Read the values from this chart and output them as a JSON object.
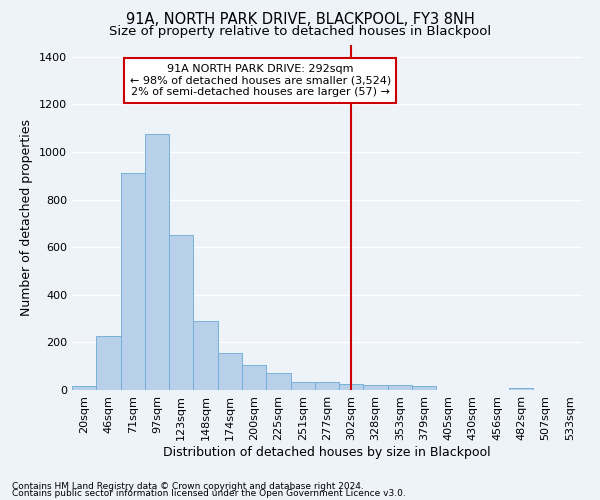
{
  "title": "91A, NORTH PARK DRIVE, BLACKPOOL, FY3 8NH",
  "subtitle": "Size of property relative to detached houses in Blackpool",
  "xlabel": "Distribution of detached houses by size in Blackpool",
  "ylabel": "Number of detached properties",
  "footnote1": "Contains HM Land Registry data © Crown copyright and database right 2024.",
  "footnote2": "Contains public sector information licensed under the Open Government Licence v3.0.",
  "bar_labels": [
    "20sqm",
    "46sqm",
    "71sqm",
    "97sqm",
    "123sqm",
    "148sqm",
    "174sqm",
    "200sqm",
    "225sqm",
    "251sqm",
    "277sqm",
    "302sqm",
    "328sqm",
    "353sqm",
    "379sqm",
    "405sqm",
    "430sqm",
    "456sqm",
    "482sqm",
    "507sqm",
    "533sqm"
  ],
  "bar_values": [
    15,
    225,
    910,
    1075,
    650,
    290,
    155,
    105,
    70,
    35,
    35,
    25,
    20,
    20,
    15,
    0,
    0,
    0,
    10,
    0,
    0
  ],
  "bar_color": "#b8d0ea",
  "bar_edge_color": "#6aaad4",
  "vline_color": "#cc0000",
  "vline_x_index": 11,
  "annotation_text_line1": "91A NORTH PARK DRIVE: 292sqm",
  "annotation_text_line2": "← 98% of detached houses are smaller (3,524)",
  "annotation_text_line3": "2% of semi-detached houses are larger (57) →",
  "annotation_box_color": "#cc0000",
  "ylim": [
    0,
    1450
  ],
  "yticks": [
    0,
    200,
    400,
    600,
    800,
    1000,
    1200,
    1400
  ],
  "background_color": "#eef2f9",
  "grid_color": "#ffffff",
  "title_fontsize": 10.5,
  "subtitle_fontsize": 9.5,
  "xlabel_fontsize": 9,
  "ylabel_fontsize": 9,
  "tick_fontsize": 8,
  "annotation_fontsize": 8,
  "footnote_fontsize": 6.5
}
